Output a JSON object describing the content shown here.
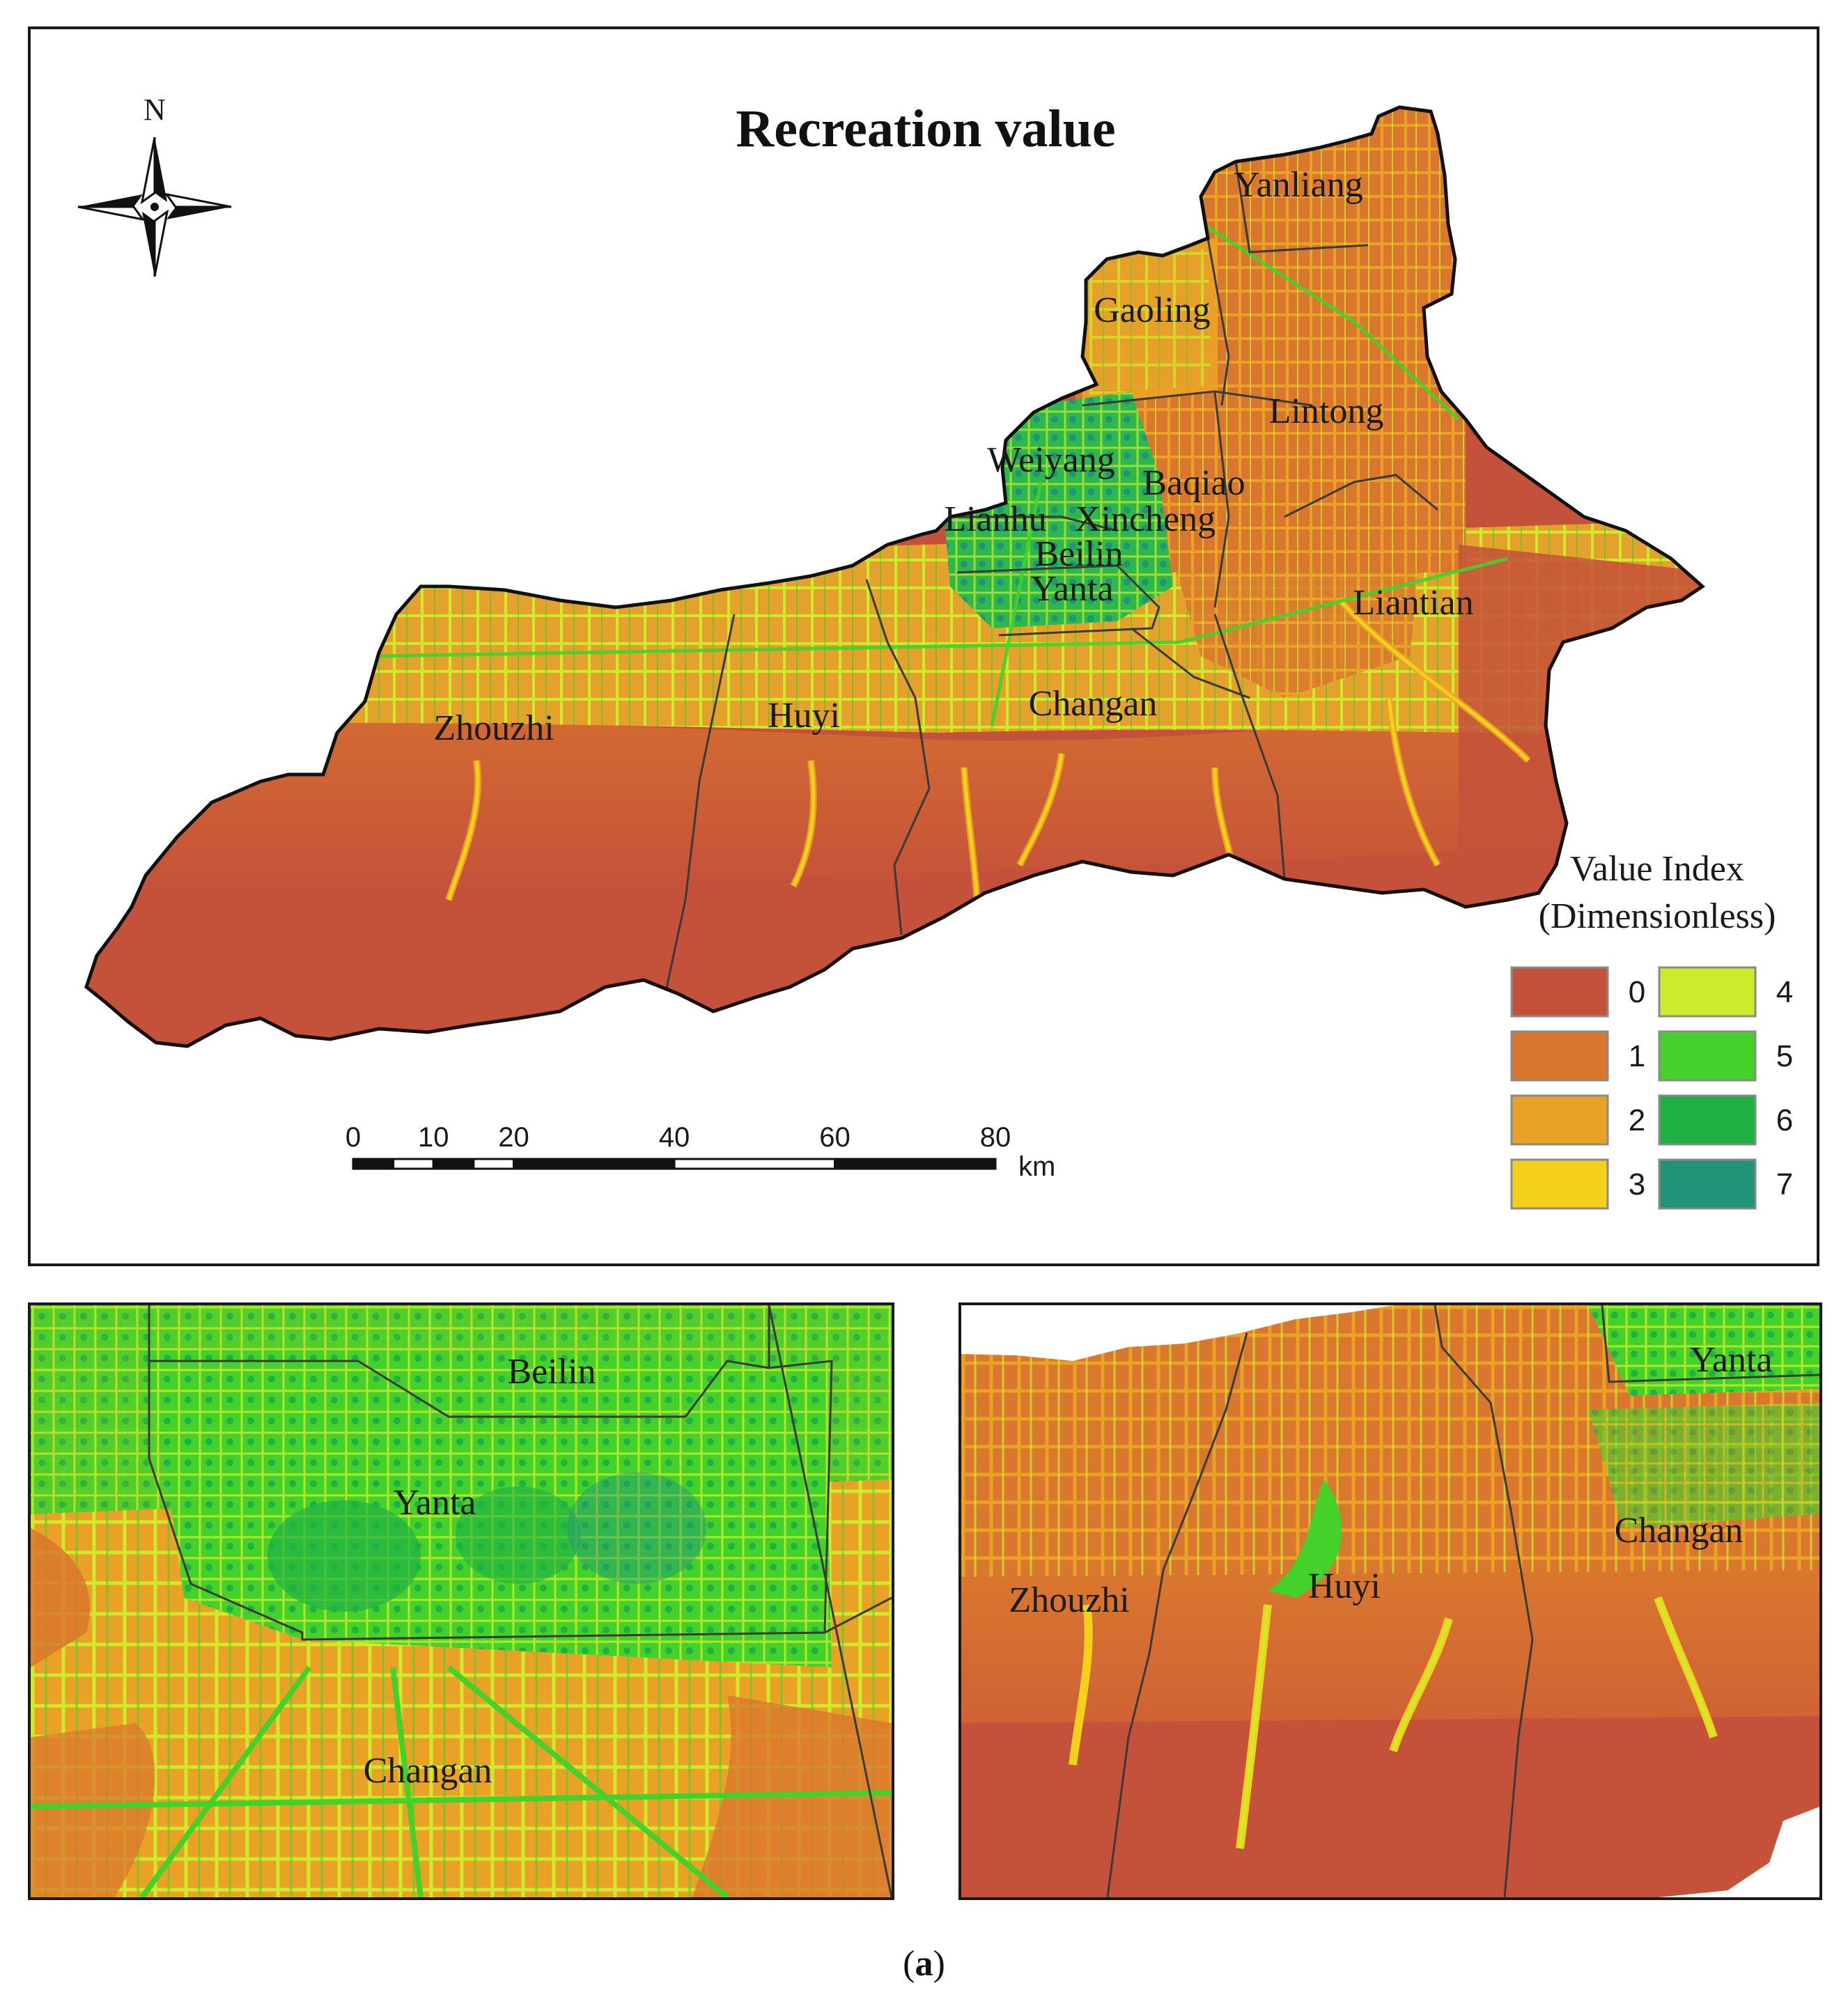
{
  "title": "Recreation value",
  "north_label": "N",
  "legend": {
    "title_line1": "Value Index",
    "title_line2": "(Dimensionless)",
    "classes": [
      {
        "label": "0",
        "color": "#C4513A"
      },
      {
        "label": "1",
        "color": "#D9772E"
      },
      {
        "label": "2",
        "color": "#EAA226"
      },
      {
        "label": "3",
        "color": "#F2D01C"
      },
      {
        "label": "4",
        "color": "#CDEB2A"
      },
      {
        "label": "5",
        "color": "#43D12A"
      },
      {
        "label": "6",
        "color": "#1FB144"
      },
      {
        "label": "7",
        "color": "#219479"
      }
    ]
  },
  "scale_bar": {
    "ticks": [
      "0",
      "10",
      "20",
      "40",
      "60",
      "80"
    ],
    "unit": "km"
  },
  "main_labels": {
    "yanliang": "Yanliang",
    "gaoling": "Gaoling",
    "lintong": "Lintong",
    "weiyang": "Weiyang",
    "baqiao": "Baqiao",
    "lianhu": "Lianhu",
    "xincheng": "Xincheng",
    "beilin": "Beilin",
    "yanta": "Yanta",
    "liantian": "Liantian",
    "zhouzhi": "Zhouzhi",
    "huyi": "Huyi",
    "changan": "Changan"
  },
  "inset_left_labels": {
    "beilin": "Beilin",
    "yanta": "Yanta",
    "changan": "Changan"
  },
  "inset_right_labels": {
    "yanta": "Yanta",
    "changan": "Changan",
    "zhouzhi": "Zhouzhi",
    "huyi": "Huyi"
  },
  "caption": {
    "open": "(",
    "letter": "a",
    "close": ")"
  }
}
